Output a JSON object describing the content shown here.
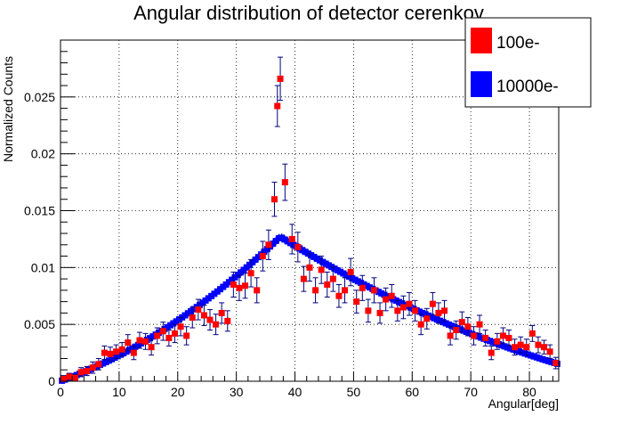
{
  "chart_data": {
    "type": "scatter",
    "title": "Angular distribution of detector cerenkov",
    "xlabel": "Angular[deg]",
    "ylabel": "Normalized Counts",
    "xlim": [
      0,
      85
    ],
    "ylim": [
      0,
      0.03
    ],
    "grid": true,
    "legend_position": "top-right",
    "x_ticks": [
      "0",
      "10",
      "20",
      "30",
      "40",
      "50",
      "60",
      "70",
      "80"
    ],
    "y_ticks": [
      "0",
      "0.005",
      "0.01",
      "0.015",
      "0.02",
      "0.025"
    ],
    "series": [
      {
        "name": "100e-",
        "color": "#ff0000",
        "marker": "square",
        "error_bar_color": "#00007f",
        "points": [
          [
            0.5,
            0.0002,
            0.0003
          ],
          [
            1.5,
            0.0004,
            0.0003
          ],
          [
            2.5,
            0.0003,
            0.0003
          ],
          [
            3.5,
            0.0008,
            0.0004
          ],
          [
            4.5,
            0.0009,
            0.0004
          ],
          [
            5.5,
            0.0012,
            0.0005
          ],
          [
            6.5,
            0.0015,
            0.0005
          ],
          [
            7.5,
            0.0025,
            0.0006
          ],
          [
            8.5,
            0.0024,
            0.0006
          ],
          [
            9.5,
            0.0026,
            0.0006
          ],
          [
            10.5,
            0.0028,
            0.0006
          ],
          [
            11.5,
            0.0034,
            0.0007
          ],
          [
            12.5,
            0.0025,
            0.0006
          ],
          [
            13.5,
            0.0036,
            0.0007
          ],
          [
            14.5,
            0.0035,
            0.0007
          ],
          [
            15.5,
            0.003,
            0.0007
          ],
          [
            16.5,
            0.004,
            0.0007
          ],
          [
            17.5,
            0.0044,
            0.0008
          ],
          [
            18.5,
            0.0038,
            0.0007
          ],
          [
            19.5,
            0.0042,
            0.0008
          ],
          [
            20.5,
            0.0048,
            0.0008
          ],
          [
            21.5,
            0.004,
            0.0008
          ],
          [
            22.5,
            0.0056,
            0.0009
          ],
          [
            23.5,
            0.0063,
            0.0009
          ],
          [
            24.5,
            0.0058,
            0.0009
          ],
          [
            25.5,
            0.0054,
            0.0009
          ],
          [
            26.5,
            0.005,
            0.0009
          ],
          [
            27.5,
            0.006,
            0.0009
          ],
          [
            28.5,
            0.0053,
            0.0009
          ],
          [
            29.5,
            0.0085,
            0.0011
          ],
          [
            30.5,
            0.0082,
            0.0011
          ],
          [
            31.5,
            0.0084,
            0.0011
          ],
          [
            32.5,
            0.0095,
            0.0012
          ],
          [
            33.5,
            0.008,
            0.0011
          ],
          [
            34.5,
            0.011,
            0.0013
          ],
          [
            35.5,
            0.012,
            0.0013
          ],
          [
            36.5,
            0.016,
            0.0015
          ],
          [
            37.0,
            0.0242,
            0.0018
          ],
          [
            37.5,
            0.0266,
            0.0019
          ],
          [
            38.3,
            0.0175,
            0.0016
          ],
          [
            39.5,
            0.0125,
            0.0013
          ],
          [
            40.5,
            0.0118,
            0.0013
          ],
          [
            41.5,
            0.009,
            0.0011
          ],
          [
            42.5,
            0.01,
            0.0012
          ],
          [
            43.5,
            0.008,
            0.0011
          ],
          [
            44.5,
            0.0098,
            0.0012
          ],
          [
            45.5,
            0.0085,
            0.0011
          ],
          [
            46.5,
            0.009,
            0.0011
          ],
          [
            47.5,
            0.0075,
            0.001
          ],
          [
            48.5,
            0.008,
            0.0011
          ],
          [
            49.5,
            0.0096,
            0.0012
          ],
          [
            50.5,
            0.007,
            0.001
          ],
          [
            51.5,
            0.0082,
            0.0011
          ],
          [
            52.5,
            0.0062,
            0.001
          ],
          [
            53.5,
            0.008,
            0.0011
          ],
          [
            54.5,
            0.006,
            0.0009
          ],
          [
            55.5,
            0.0072,
            0.001
          ],
          [
            56.5,
            0.0075,
            0.001
          ],
          [
            57.5,
            0.0062,
            0.0009
          ],
          [
            58.5,
            0.0065,
            0.001
          ],
          [
            59.5,
            0.0068,
            0.001
          ],
          [
            60.5,
            0.0062,
            0.0009
          ],
          [
            61.5,
            0.005,
            0.0009
          ],
          [
            62.5,
            0.0055,
            0.0009
          ],
          [
            63.5,
            0.0068,
            0.001
          ],
          [
            64.5,
            0.006,
            0.0009
          ],
          [
            65.5,
            0.0062,
            0.0009
          ],
          [
            66.5,
            0.004,
            0.0008
          ],
          [
            67.5,
            0.0045,
            0.0008
          ],
          [
            68.5,
            0.0052,
            0.0009
          ],
          [
            69.5,
            0.0048,
            0.0008
          ],
          [
            70.5,
            0.004,
            0.0008
          ],
          [
            71.5,
            0.005,
            0.0008
          ],
          [
            72.5,
            0.0038,
            0.0007
          ],
          [
            73.5,
            0.0025,
            0.0006
          ],
          [
            74.5,
            0.0035,
            0.0007
          ],
          [
            75.5,
            0.004,
            0.0007
          ],
          [
            76.5,
            0.0038,
            0.0007
          ],
          [
            77.5,
            0.003,
            0.0007
          ],
          [
            78.5,
            0.0032,
            0.0007
          ],
          [
            79.5,
            0.003,
            0.0007
          ],
          [
            80.5,
            0.0042,
            0.0007
          ],
          [
            81.5,
            0.0032,
            0.0007
          ],
          [
            82.5,
            0.003,
            0.0006
          ],
          [
            83.5,
            0.0026,
            0.0006
          ],
          [
            84.5,
            0.0016,
            0.0005
          ]
        ]
      },
      {
        "name": "10000e-",
        "color": "#0000ff",
        "marker": "square",
        "error_bar_color": "#00007f",
        "peak_x": 37.5,
        "peak_y": 0.0127,
        "bin_step": 0.5,
        "y_at_zero": 0.0,
        "y_at_85": 0.0015,
        "rel_error": 0.03
      }
    ]
  }
}
